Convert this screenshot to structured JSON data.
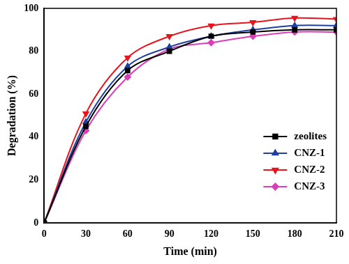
{
  "chart_data": {
    "type": "line",
    "x_label": "Time (min)",
    "y_label": "Degradation (%)",
    "x": [
      0,
      30,
      60,
      90,
      120,
      150,
      180,
      210
    ],
    "series": [
      {
        "name": "zeolites",
        "color": "#000000",
        "marker": "square",
        "values": [
          0,
          45,
          71,
          80,
          87,
          89,
          90,
          90
        ]
      },
      {
        "name": "CNZ-1",
        "color": "#1f3f9f",
        "marker": "triangle",
        "values": [
          0,
          47,
          73,
          82,
          87,
          90,
          92,
          92
        ]
      },
      {
        "name": "CNZ-2",
        "color": "#e8141c",
        "marker": "triangle_down",
        "values": [
          0,
          51,
          77,
          87,
          92,
          93.5,
          95.5,
          95
        ]
      },
      {
        "name": "CNZ-3",
        "color": "#d93fb8",
        "marker": "diamond",
        "values": [
          0,
          43,
          68,
          81,
          84,
          87,
          89,
          89
        ]
      }
    ],
    "xlim": [
      0,
      210
    ],
    "xticks": [
      0,
      30,
      60,
      90,
      120,
      150,
      180,
      210
    ],
    "ylim": [
      0,
      100
    ],
    "yticks": [
      0,
      20,
      40,
      60,
      80,
      100
    ],
    "grid": false,
    "legend": "lower right"
  }
}
